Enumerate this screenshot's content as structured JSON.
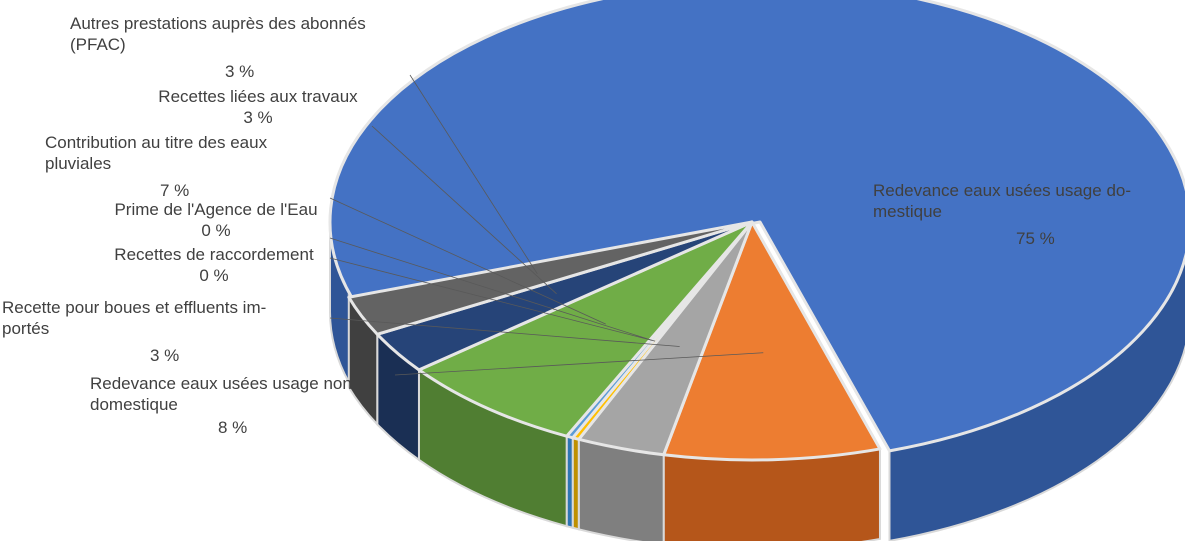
{
  "chart_data": {
    "type": "pie",
    "style": "3d-exploded",
    "title": "",
    "slices": [
      {
        "label": "Redevance eaux usées usage do-\nmestique",
        "value_label": "75 %",
        "value": 75.25,
        "color": "#4472C4",
        "side_color": "#2F5597"
      },
      {
        "label": "Redevance eaux usées usage non\ndomestique",
        "value_label": "8 %",
        "value": 8.2,
        "color": "#ED7D31",
        "side_color": "#B5561A"
      },
      {
        "label": "Recette pour boues et effluents im-\nportés",
        "value_label": "3 %",
        "value": 3.35,
        "color": "#A5A5A5",
        "side_color": "#7F7F7F"
      },
      {
        "label": "Recettes de raccordement",
        "value_label": "0 %",
        "value": 0.25,
        "color": "#FFC000",
        "side_color": "#BF9000"
      },
      {
        "label": "Prime de l'Agence de l'Eau",
        "value_label": "0 %",
        "value": 0.25,
        "color": "#5B9BD5",
        "side_color": "#2E75B6"
      },
      {
        "label": "Contribution au titre des eaux\npluviales",
        "value_label": "7 %",
        "value": 7.15,
        "color": "#70AD47",
        "side_color": "#507E32"
      },
      {
        "label": "Recettes liées aux travaux",
        "value_label": "3 %",
        "value": 2.85,
        "color": "#264478",
        "side_color": "#1A2F54"
      },
      {
        "label": "Autres prestations auprès des abonnés\n(PFAC)",
        "value_label": "3 %",
        "value": 2.7,
        "color": "#636363",
        "side_color": "#404040"
      }
    ]
  }
}
